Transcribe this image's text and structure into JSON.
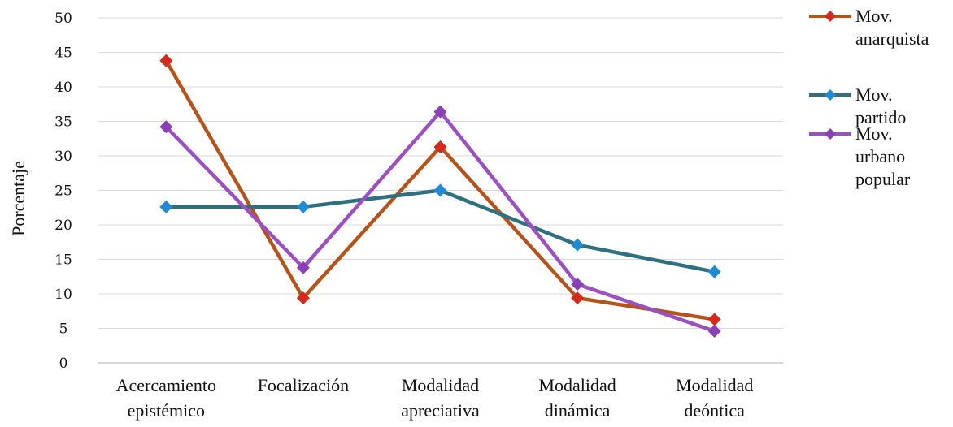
{
  "chart_data": {
    "type": "line",
    "ylabel": "Porcentaje",
    "ylim": [
      0,
      50
    ],
    "yticks": [
      "0",
      "5",
      "10",
      "15",
      "20",
      "25",
      "30",
      "35",
      "40",
      "45",
      "50"
    ],
    "categories": [
      [
        "Acercamiento",
        "epistémico"
      ],
      [
        "Focalización"
      ],
      [
        "Modalidad",
        "apreciativa"
      ],
      [
        "Modalidad",
        "dinámica"
      ],
      [
        "Modalidad",
        "deóntica"
      ]
    ],
    "series": [
      {
        "name": [
          "Mov.",
          "anarquista"
        ],
        "color": "#b5541a",
        "marker": "#d42a1e",
        "values": [
          43.8,
          9.4,
          31.3,
          9.4,
          6.3
        ]
      },
      {
        "name": [
          "Mov.",
          "partido"
        ],
        "color": "#2e6f80",
        "marker": "#1f8ad6",
        "values": [
          22.6,
          22.6,
          25.0,
          17.1,
          13.2
        ]
      },
      {
        "name": [
          "Mov.",
          "urbano",
          "popular"
        ],
        "color": "#9b4fc0",
        "marker": "#8a3fb8",
        "values": [
          34.2,
          13.8,
          36.4,
          11.4,
          4.6
        ]
      }
    ],
    "legend": "right",
    "grid": true
  }
}
